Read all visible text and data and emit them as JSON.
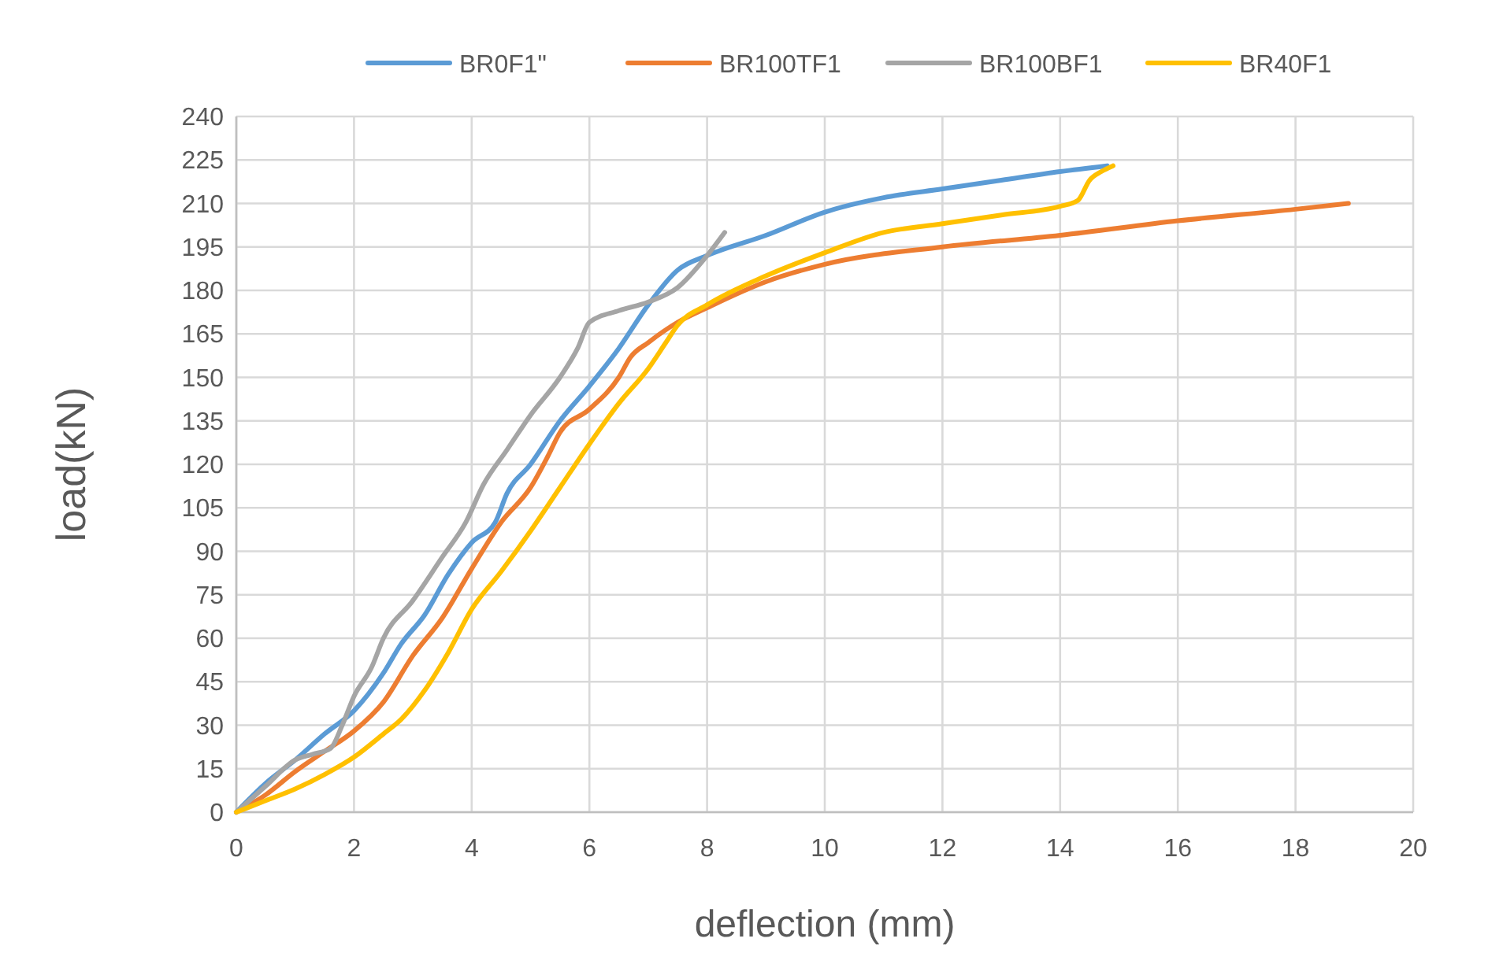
{
  "chart_data": {
    "type": "line",
    "xlabel": "deflection (mm)",
    "ylabel": "load(kN)",
    "xlim": [
      0,
      20
    ],
    "xticks": [
      0,
      2,
      4,
      6,
      8,
      10,
      12,
      14,
      16,
      18,
      20
    ],
    "ylim": [
      0,
      240
    ],
    "yticks": [
      0,
      15,
      30,
      45,
      60,
      75,
      90,
      105,
      120,
      135,
      150,
      165,
      180,
      195,
      210,
      225,
      240
    ],
    "grid": true,
    "legend": "top",
    "marker": "none",
    "line_style": "solid",
    "series": [
      {
        "name": "BR0F1\"",
        "color": "#5b9bd5",
        "x": [
          0,
          0.5,
          1,
          1.5,
          2,
          2.5,
          2.8,
          3.2,
          3.6,
          4,
          4.4,
          4.6,
          5,
          5.5,
          6,
          6.5,
          7,
          7.5,
          8,
          9,
          10,
          11,
          12,
          13,
          14,
          14.8
        ],
        "values": [
          0,
          10,
          18,
          27,
          35,
          48,
          58,
          68,
          82,
          93,
          100,
          110,
          120,
          135,
          147,
          160,
          175,
          187,
          192,
          199,
          207,
          212,
          215,
          218,
          221,
          223
        ]
      },
      {
        "name": "BR100TF1",
        "color": "#ed7d31",
        "x": [
          0,
          0.5,
          1,
          1.5,
          2,
          2.5,
          3,
          3.5,
          4,
          4.5,
          5,
          5.3,
          5.5,
          6,
          6.5,
          6.7,
          7,
          7.5,
          8,
          9,
          10,
          12,
          14,
          16,
          18,
          18.9
        ],
        "values": [
          0,
          6,
          14,
          21,
          28,
          38,
          54,
          67,
          84,
          100,
          112,
          123,
          131,
          139,
          150,
          157,
          162,
          169,
          174,
          183,
          189,
          195,
          199,
          204,
          208,
          210
        ]
      },
      {
        "name": "BR100BF1",
        "color": "#a5a5a5",
        "x": [
          0,
          0.5,
          1,
          1.3,
          1.6,
          1.8,
          2,
          2.3,
          2.5,
          3,
          3.5,
          3.9,
          4.2,
          4.6,
          5,
          5.5,
          5.8,
          6,
          6.5,
          7,
          7.5,
          8,
          8.3
        ],
        "values": [
          0,
          9,
          18,
          20,
          22,
          30,
          40,
          50,
          60,
          73,
          88,
          100,
          113,
          125,
          137,
          150,
          160,
          169,
          173,
          176,
          181,
          192,
          200
        ]
      },
      {
        "name": "BR40F1",
        "color": "#ffc000",
        "x": [
          0,
          0.5,
          1,
          1.5,
          2,
          2.5,
          2.8,
          3.2,
          3.6,
          4,
          4.5,
          5,
          5.5,
          6,
          6.5,
          7,
          7.3,
          7.5,
          8,
          9,
          10,
          11,
          12,
          13,
          14,
          14.3,
          14.5,
          14.7,
          14.9
        ],
        "values": [
          0,
          4,
          8,
          13,
          19,
          27,
          32,
          42,
          55,
          70,
          83,
          97,
          112,
          127,
          141,
          153,
          162,
          168,
          175,
          185,
          193,
          200,
          203,
          206,
          209,
          211,
          218,
          221,
          223
        ]
      }
    ]
  }
}
